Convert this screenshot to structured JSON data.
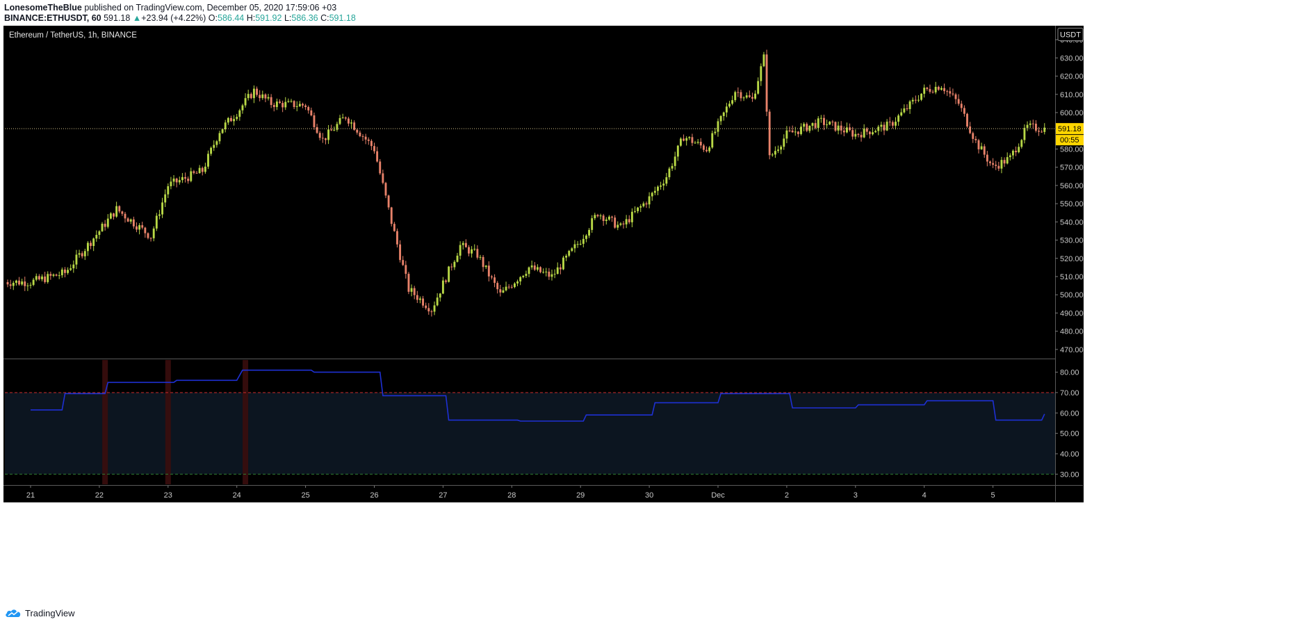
{
  "header": {
    "author": "LonesomeTheBlue",
    "published": "published on TradingView.com, December 05, 2020 17:59:06 +03",
    "symbol": "BINANCE:ETHUSDT, 60",
    "last": "591.18",
    "change_arrow": "▲",
    "change": "+23.94 (+4.22%)",
    "o_label": "O:",
    "o_value": "586.44",
    "h_label": "H:",
    "h_value": "591.92",
    "l_label": "L:",
    "l_value": "586.36",
    "c_label": "C:",
    "c_value": "591.18"
  },
  "footer": {
    "brand": "TradingView",
    "logo_icon": "tradingview-cloud-icon"
  },
  "colors": {
    "background": "#000000",
    "up": "#b8d846",
    "down": "#e8826a",
    "rsi_line": "#1e30d4",
    "upper_band": "#cc2a2a",
    "lower_band": "#2f7d32",
    "band_fill": "#0c1520",
    "price_tag": "#ffd600",
    "grid_text": "#c8c8c8"
  },
  "chart_data": [
    {
      "type": "candlestick",
      "title": "Ethereum / TetherUS, 1h, BINANCE",
      "unit_badge": "USDT",
      "last_price": "591.18",
      "countdown": "00:55",
      "ylim": [
        465,
        645
      ],
      "yticks": [
        "640.00",
        "630.00",
        "620.00",
        "610.00",
        "600.00",
        "590.00",
        "580.00",
        "570.00",
        "560.00",
        "550.00",
        "540.00",
        "530.00",
        "520.00",
        "510.00",
        "500.00",
        "490.00",
        "480.00",
        "470.00"
      ],
      "x_labels": [
        "21",
        "22",
        "23",
        "24",
        "25",
        "26",
        "27",
        "28",
        "29",
        "30",
        "Dec",
        "2",
        "3",
        "4",
        "5"
      ],
      "grid": false,
      "approx_close_path": [
        [
          "Nov 21 00:00",
          507
        ],
        [
          "Nov 21 12:00",
          512
        ],
        [
          "Nov 22 00:00",
          535
        ],
        [
          "Nov 22 06:00",
          547
        ],
        [
          "Nov 22 18:00",
          532
        ],
        [
          "Nov 23 00:00",
          560
        ],
        [
          "Nov 23 12:00",
          568
        ],
        [
          "Nov 23 18:00",
          590
        ],
        [
          "Nov 24 00:00",
          600
        ],
        [
          "Nov 24 06:00",
          612
        ],
        [
          "Nov 24 12:00",
          605
        ],
        [
          "Nov 25 00:00",
          604
        ],
        [
          "Nov 25 06:00",
          585
        ],
        [
          "Nov 25 14:00",
          598
        ],
        [
          "Nov 26 00:00",
          580
        ],
        [
          "Nov 26 06:00",
          540
        ],
        [
          "Nov 26 12:00",
          503
        ],
        [
          "Nov 26 20:00",
          492
        ],
        [
          "Nov 27 06:00",
          527
        ],
        [
          "Nov 27 12:00",
          522
        ],
        [
          "Nov 27 20:00",
          500
        ],
        [
          "Nov 28 06:00",
          515
        ],
        [
          "Nov 28 14:00",
          510
        ],
        [
          "Nov 29 00:00",
          530
        ],
        [
          "Nov 29 06:00",
          545
        ],
        [
          "Nov 29 14:00",
          537
        ],
        [
          "Nov 30 00:00",
          553
        ],
        [
          "Nov 30 06:00",
          565
        ],
        [
          "Nov 30 12:00",
          587
        ],
        [
          "Nov 30 20:00",
          580
        ],
        [
          "Dec 1 06:00",
          612
        ],
        [
          "Dec 1 12:00",
          607
        ],
        [
          "Dec 1 16:00",
          630
        ],
        [
          "Dec 1 18:00",
          575
        ],
        [
          "Dec 2 00:00",
          588
        ],
        [
          "Dec 2 12:00",
          595
        ],
        [
          "Dec 3 00:00",
          588
        ],
        [
          "Dec 3 12:00",
          593
        ],
        [
          "Dec 4 00:00",
          612
        ],
        [
          "Dec 4 06:00",
          615
        ],
        [
          "Dec 4 12:00",
          605
        ],
        [
          "Dec 4 18:00",
          584
        ],
        [
          "Dec 5 00:00",
          570
        ],
        [
          "Dec 5 06:00",
          575
        ],
        [
          "Dec 5 12:00",
          592
        ],
        [
          "Dec 5 18:00",
          591.18
        ]
      ]
    },
    {
      "type": "line",
      "series": [
        {
          "values": [
            [
              "Nov 21 00:00",
              61.5
            ],
            [
              "Nov 21 11:00",
              61.5
            ],
            [
              "Nov 21 12:00",
              69.5
            ],
            [
              "Nov 22 02:00",
              69.5
            ],
            [
              "Nov 22 03:00",
              75
            ],
            [
              "Nov 23 02:00",
              75
            ],
            [
              "Nov 23 03:00",
              76
            ],
            [
              "Nov 24 00:00",
              76
            ],
            [
              "Nov 24 02:00",
              81
            ],
            [
              "Nov 25 02:00",
              81
            ],
            [
              "Nov 25 03:00",
              80
            ],
            [
              "Nov 26 02:00",
              80
            ],
            [
              "Nov 26 03:00",
              68.5
            ],
            [
              "Nov 27 01:00",
              68.5
            ],
            [
              "Nov 27 02:00",
              56.5
            ],
            [
              "Nov 28 02:00",
              56.5
            ],
            [
              "Nov 28 03:00",
              56
            ],
            [
              "Nov 29 01:00",
              56
            ],
            [
              "Nov 29 02:00",
              59
            ],
            [
              "Nov 30 01:00",
              59
            ],
            [
              "Nov 30 02:00",
              65
            ],
            [
              "Dec 1 00:00",
              65
            ],
            [
              "Dec 1 01:00",
              69.5
            ],
            [
              "Dec 2 01:00",
              69.5
            ],
            [
              "Dec 2 02:00",
              62.5
            ],
            [
              "Dec 3 00:00",
              62.5
            ],
            [
              "Dec 3 01:00",
              64
            ],
            [
              "Dec 4 00:00",
              64
            ],
            [
              "Dec 4 01:00",
              66
            ],
            [
              "Dec 5 00:00",
              66
            ],
            [
              "Dec 5 01:00",
              56.5
            ],
            [
              "Dec 5 17:00",
              56.5
            ],
            [
              "Dec 5 18:00",
              59.5
            ]
          ]
        }
      ],
      "upper_band": 70,
      "lower_band": 30,
      "ylim": [
        25,
        86
      ],
      "yticks": [
        "80.00",
        "70.00",
        "60.00",
        "50.00",
        "40.00",
        "30.00"
      ],
      "highlight_columns": [
        "Nov 22 02:00",
        "Nov 23 00:00",
        "Nov 24 03:00"
      ]
    }
  ]
}
